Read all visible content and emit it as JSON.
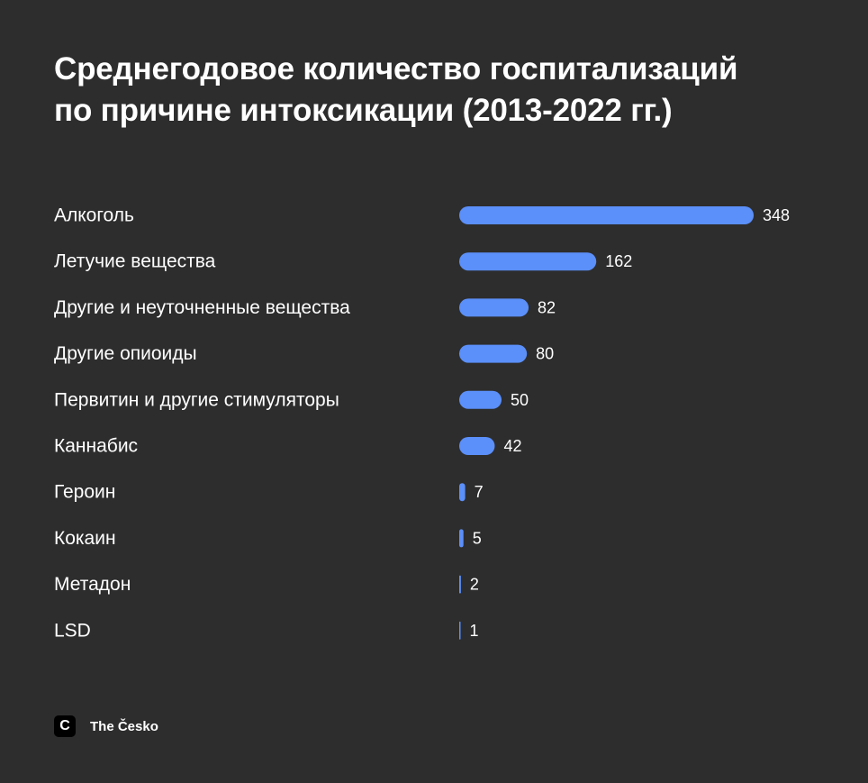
{
  "chart_data": {
    "type": "bar",
    "orientation": "horizontal",
    "title_lines": [
      "Среднегодовое количество госпитализаций",
      "по причине интоксикации (2013-2022 гг.)"
    ],
    "categories": [
      "Алкоголь",
      "Летучие вещества",
      "Другие и неуточненные вещества",
      "Другие опиоиды",
      "Первитин и другие стимуляторы",
      "Каннабис",
      "Героин",
      "Кокаин",
      "Метадон",
      "LSD"
    ],
    "values": [
      348,
      162,
      82,
      80,
      50,
      42,
      7,
      5,
      2,
      1
    ],
    "bar_color": "#5b8ff9",
    "background": "#2d2d2d",
    "grid": false
  },
  "brand": {
    "icon": "c-letter-logo-icon",
    "logo_glyph": "C",
    "name": "The Česko"
  }
}
